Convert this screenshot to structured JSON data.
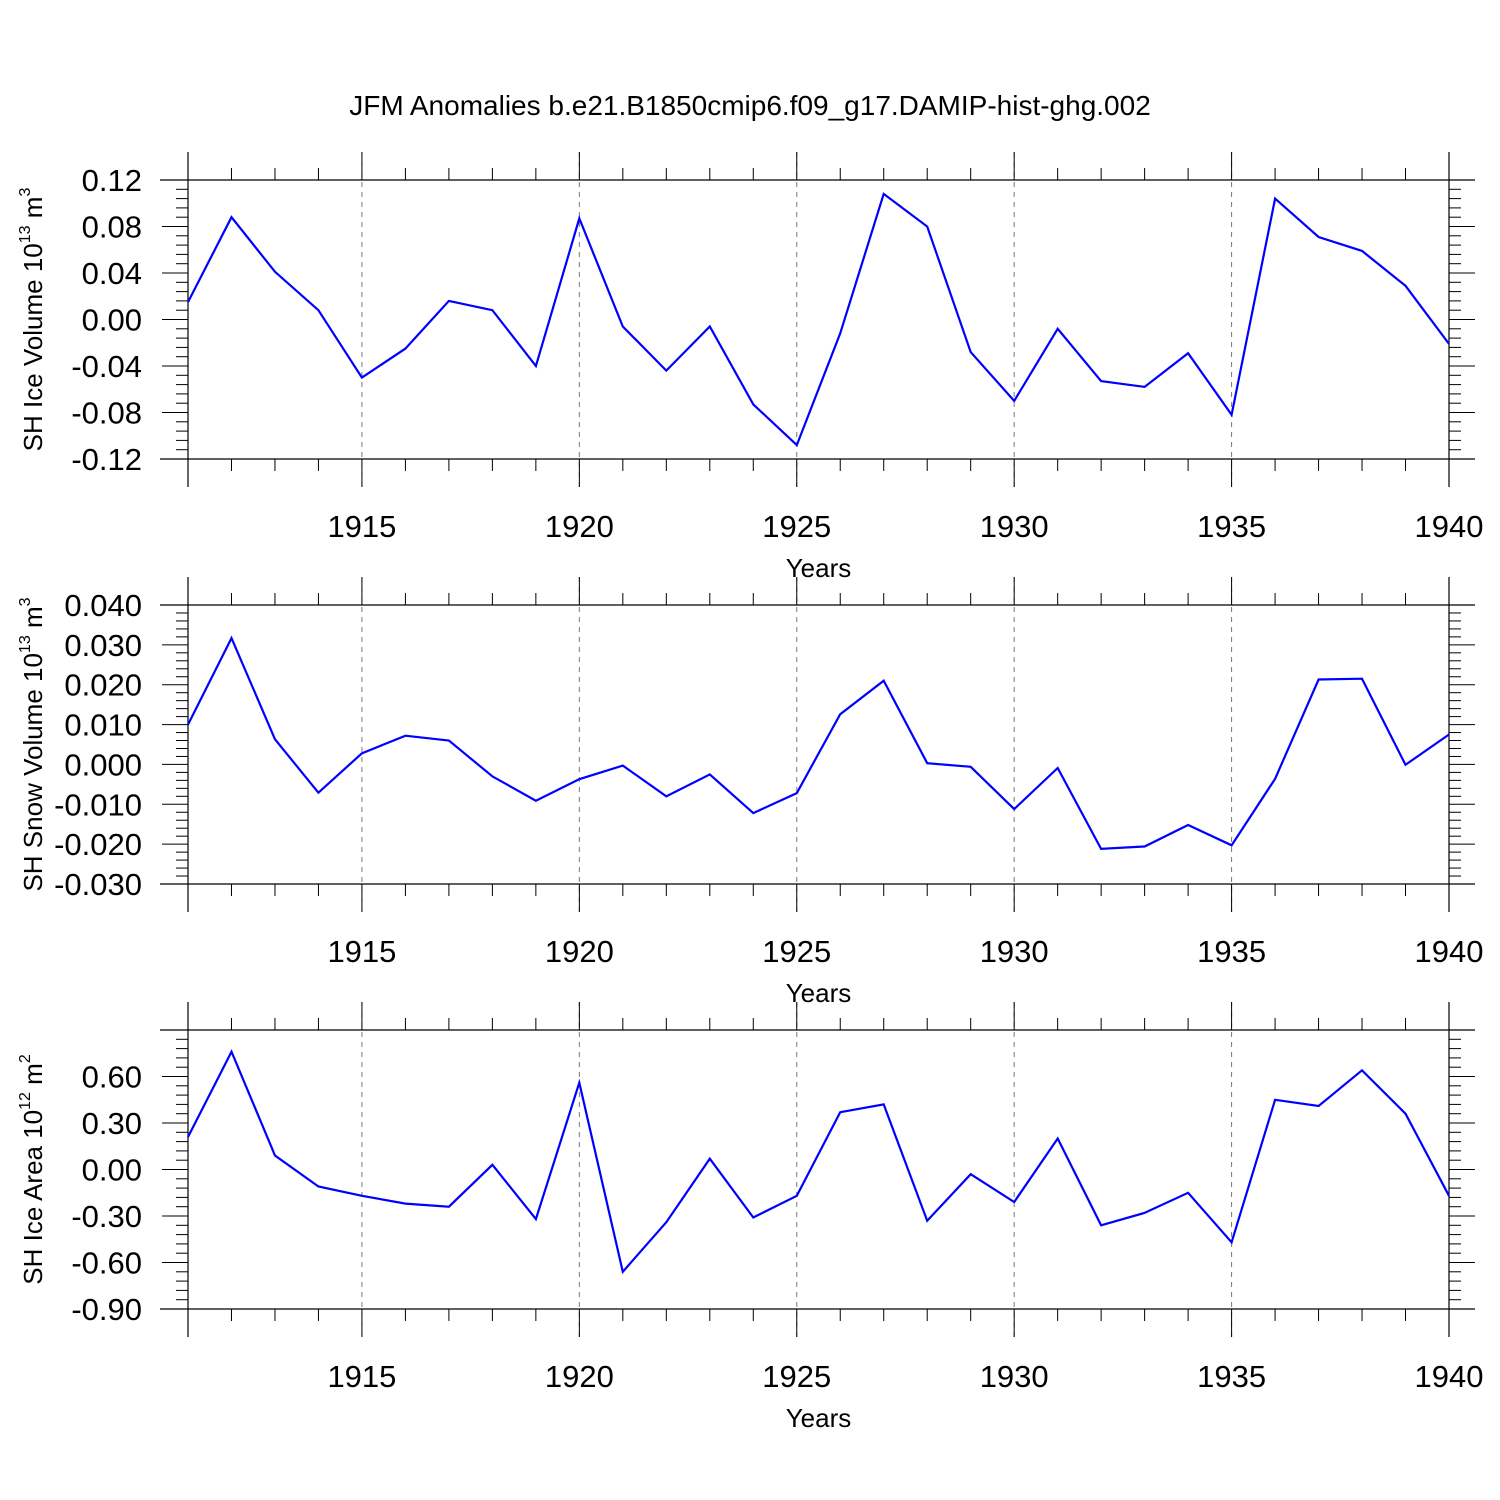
{
  "title": "JFM Anomalies b.e21.B1850cmip6.f09_g17.DAMIP-hist-ghg.002",
  "chart_data": [
    {
      "type": "line",
      "id": "ice-volume",
      "ylabel_text": "SH Ice Volume 10",
      "ylabel_exp": "13",
      "ylabel_unit": " m",
      "ylabel_unit_exp": "3",
      "xlabel": "Years",
      "xlim": [
        1911,
        1940
      ],
      "ylim": [
        -0.12,
        0.12
      ],
      "yticks": [
        -0.12,
        -0.08,
        -0.04,
        0.0,
        0.04,
        0.08,
        0.12
      ],
      "ytick_labels": [
        "-0.12",
        "-0.08",
        "-0.04",
        "0.00",
        "0.04",
        "0.08",
        "0.12"
      ],
      "xticks": [
        1915,
        1920,
        1925,
        1930,
        1935,
        1940
      ],
      "xtick_labels": [
        "1915",
        "1920",
        "1925",
        "1930",
        "1935",
        "1940"
      ],
      "line_color": "#0000ff",
      "grid": "vertical dashed at major x ticks",
      "series": [
        {
          "x": [
            1911,
            1912,
            1913,
            1914,
            1915,
            1916,
            1917,
            1918,
            1919,
            1920,
            1921,
            1922,
            1923,
            1924,
            1925,
            1926,
            1927,
            1928,
            1929,
            1930,
            1931,
            1932,
            1933,
            1934,
            1935,
            1936,
            1937,
            1938,
            1939,
            1940
          ],
          "y": [
            0.015,
            0.088,
            0.041,
            0.008,
            -0.05,
            -0.025,
            0.016,
            0.008,
            -0.04,
            0.087,
            -0.006,
            -0.044,
            -0.006,
            -0.073,
            -0.108,
            -0.012,
            0.108,
            0.08,
            -0.028,
            -0.07,
            -0.008,
            -0.053,
            -0.058,
            -0.029,
            -0.082,
            0.104,
            0.071,
            0.059,
            0.029,
            -0.021
          ]
        }
      ]
    },
    {
      "type": "line",
      "id": "snow-volume",
      "ylabel_text": "SH Snow Volume 10",
      "ylabel_exp": "13",
      "ylabel_unit": " m",
      "ylabel_unit_exp": "3",
      "xlabel": "Years",
      "xlim": [
        1911,
        1940
      ],
      "ylim": [
        -0.03,
        0.04
      ],
      "yticks": [
        -0.03,
        -0.02,
        -0.01,
        0.0,
        0.01,
        0.02,
        0.03,
        0.04
      ],
      "ytick_labels": [
        "-0.030",
        "-0.020",
        "-0.010",
        "0.000",
        "0.010",
        "0.020",
        "0.030",
        "0.040"
      ],
      "xticks": [
        1915,
        1920,
        1925,
        1930,
        1935,
        1940
      ],
      "xtick_labels": [
        "1915",
        "1920",
        "1925",
        "1930",
        "1935",
        "1940"
      ],
      "line_color": "#0000ff",
      "grid": "vertical dashed at major x ticks",
      "series": [
        {
          "x": [
            1911,
            1912,
            1913,
            1914,
            1915,
            1916,
            1917,
            1918,
            1919,
            1920,
            1921,
            1922,
            1923,
            1924,
            1925,
            1926,
            1927,
            1928,
            1929,
            1930,
            1931,
            1932,
            1933,
            1934,
            1935,
            1936,
            1937,
            1938,
            1939,
            1940
          ],
          "y": [
            0.01,
            0.0317,
            0.0063,
            -0.0071,
            0.0028,
            0.0072,
            0.006,
            -0.003,
            -0.0091,
            -0.0037,
            -0.0003,
            -0.008,
            -0.0025,
            -0.0122,
            -0.0072,
            0.0126,
            0.021,
            0.0003,
            -0.0006,
            -0.0112,
            -0.0009,
            -0.0212,
            -0.0206,
            -0.0152,
            -0.0203,
            -0.0036,
            0.0213,
            0.0215,
            -0.0001,
            0.0075
          ]
        }
      ]
    },
    {
      "type": "line",
      "id": "ice-area",
      "ylabel_text": "SH Ice Area 10",
      "ylabel_exp": "12",
      "ylabel_unit": " m",
      "ylabel_unit_exp": "2",
      "xlabel": "Years",
      "xlim": [
        1911,
        1940
      ],
      "ylim": [
        -0.9,
        0.9
      ],
      "yticks": [
        -0.9,
        -0.6,
        -0.3,
        0.0,
        0.3,
        0.6
      ],
      "ytick_labels": [
        "-0.90",
        "-0.60",
        "-0.30",
        "0.00",
        "0.30",
        "0.60"
      ],
      "xticks": [
        1915,
        1920,
        1925,
        1930,
        1935,
        1940
      ],
      "xtick_labels": [
        "1915",
        "1920",
        "1925",
        "1930",
        "1935",
        "1940"
      ],
      "line_color": "#0000ff",
      "grid": "vertical dashed at major x ticks",
      "series": [
        {
          "x": [
            1911,
            1912,
            1913,
            1914,
            1915,
            1916,
            1917,
            1918,
            1919,
            1920,
            1921,
            1922,
            1923,
            1924,
            1925,
            1926,
            1927,
            1928,
            1929,
            1930,
            1931,
            1932,
            1933,
            1934,
            1935,
            1936,
            1937,
            1938,
            1939,
            1940
          ],
          "y": [
            0.21,
            0.76,
            0.09,
            -0.11,
            -0.17,
            -0.22,
            -0.24,
            0.03,
            -0.32,
            0.56,
            -0.66,
            -0.34,
            0.07,
            -0.31,
            -0.17,
            0.37,
            0.42,
            -0.33,
            -0.03,
            -0.21,
            0.2,
            -0.36,
            -0.28,
            -0.15,
            -0.47,
            0.45,
            0.41,
            0.64,
            0.36,
            -0.17
          ]
        }
      ]
    }
  ]
}
